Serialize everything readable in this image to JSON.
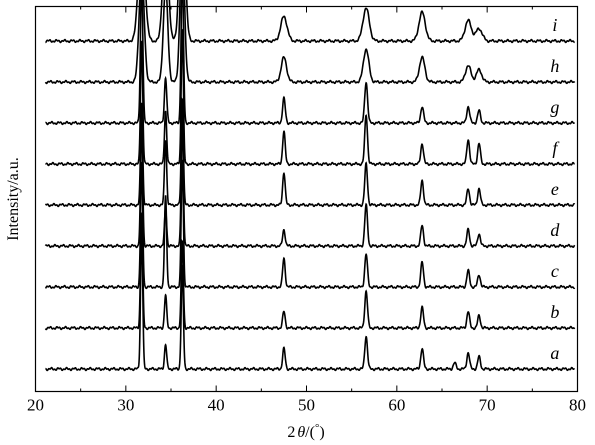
{
  "chart_data": {
    "type": "line",
    "xlabel_parts": {
      "pre": "2",
      "theta": "θ",
      "mid": "/(",
      "deg": "°",
      "post": ")"
    },
    "ylabel": "Intensity/a.u.",
    "xlim": [
      20,
      80
    ],
    "x_ticks": [
      20,
      30,
      40,
      50,
      60,
      70,
      80
    ],
    "x_tick_labels": [
      "20",
      "30",
      "40",
      "50",
      "60",
      "70",
      "80"
    ],
    "y_ticks_visible": false,
    "grid": false,
    "legend": "none",
    "series_label_position_2theta": 77.5,
    "note": "Stacked XRD patterns; each trace offset vertically. Peak heights are relative intensities (trace units).",
    "series": [
      {
        "label": "a",
        "baseline": 0.5,
        "peaks": [
          [
            31.75,
            3.4,
            0.12
          ],
          [
            34.4,
            0.6,
            0.12
          ],
          [
            36.25,
            2.5,
            0.12
          ],
          [
            47.5,
            0.5,
            0.14
          ],
          [
            56.6,
            0.8,
            0.15
          ],
          [
            62.8,
            0.5,
            0.15
          ],
          [
            66.4,
            0.15,
            0.15
          ],
          [
            67.9,
            0.4,
            0.15
          ],
          [
            69.1,
            0.3,
            0.15
          ]
        ]
      },
      {
        "label": "b",
        "baseline": 1.5,
        "peaks": [
          [
            31.75,
            2.8,
            0.12
          ],
          [
            34.4,
            0.8,
            0.12
          ],
          [
            36.25,
            2.1,
            0.12
          ],
          [
            47.5,
            0.4,
            0.14
          ],
          [
            56.6,
            0.9,
            0.15
          ],
          [
            62.8,
            0.5,
            0.15
          ],
          [
            67.9,
            0.4,
            0.15
          ],
          [
            69.1,
            0.3,
            0.15
          ]
        ]
      },
      {
        "label": "c",
        "baseline": 2.5,
        "peaks": [
          [
            31.75,
            3.0,
            0.12
          ],
          [
            34.4,
            2.2,
            0.12
          ],
          [
            36.25,
            3.1,
            0.12
          ],
          [
            47.5,
            0.7,
            0.14
          ],
          [
            56.6,
            0.8,
            0.15
          ],
          [
            62.8,
            0.6,
            0.15
          ],
          [
            67.9,
            0.4,
            0.15
          ],
          [
            69.1,
            0.3,
            0.15
          ]
        ]
      },
      {
        "label": "d",
        "baseline": 3.5,
        "peaks": [
          [
            31.75,
            3.0,
            0.12
          ],
          [
            34.4,
            0.9,
            0.12
          ],
          [
            36.25,
            3.1,
            0.12
          ],
          [
            47.5,
            0.4,
            0.14
          ],
          [
            56.6,
            1.0,
            0.15
          ],
          [
            62.8,
            0.5,
            0.15
          ],
          [
            67.9,
            0.4,
            0.15
          ],
          [
            69.1,
            0.3,
            0.15
          ]
        ]
      },
      {
        "label": "e",
        "baseline": 4.5,
        "peaks": [
          [
            31.75,
            2.5,
            0.12
          ],
          [
            34.4,
            1.6,
            0.12
          ],
          [
            36.25,
            2.6,
            0.12
          ],
          [
            47.5,
            0.8,
            0.14
          ],
          [
            56.6,
            1.0,
            0.15
          ],
          [
            62.8,
            0.6,
            0.15
          ],
          [
            67.9,
            0.4,
            0.15
          ],
          [
            69.1,
            0.4,
            0.15
          ]
        ]
      },
      {
        "label": "f",
        "baseline": 5.5,
        "peaks": [
          [
            31.75,
            3.0,
            0.12
          ],
          [
            34.4,
            1.3,
            0.12
          ],
          [
            36.25,
            3.3,
            0.12
          ],
          [
            47.5,
            0.8,
            0.14
          ],
          [
            56.6,
            1.2,
            0.15
          ],
          [
            62.8,
            0.5,
            0.15
          ],
          [
            67.9,
            0.6,
            0.15
          ],
          [
            69.1,
            0.5,
            0.15
          ]
        ]
      },
      {
        "label": "g",
        "baseline": 6.5,
        "peaks": [
          [
            31.75,
            3.5,
            0.13
          ],
          [
            34.4,
            1.1,
            0.13
          ],
          [
            36.25,
            3.7,
            0.13
          ],
          [
            47.5,
            0.6,
            0.15
          ],
          [
            56.6,
            1.0,
            0.16
          ],
          [
            62.8,
            0.4,
            0.16
          ],
          [
            67.9,
            0.4,
            0.16
          ],
          [
            69.1,
            0.3,
            0.16
          ]
        ]
      },
      {
        "label": "h",
        "baseline": 7.5,
        "peaks": [
          [
            31.75,
            2.7,
            0.28
          ],
          [
            34.4,
            2.3,
            0.25
          ],
          [
            36.25,
            3.3,
            0.25
          ],
          [
            47.5,
            0.6,
            0.3
          ],
          [
            56.6,
            0.8,
            0.3
          ],
          [
            62.8,
            0.6,
            0.3
          ],
          [
            67.9,
            0.4,
            0.3
          ],
          [
            69.1,
            0.3,
            0.3
          ]
        ]
      },
      {
        "label": "i",
        "baseline": 8.5,
        "peaks": [
          [
            31.75,
            2.8,
            0.35
          ],
          [
            34.4,
            2.7,
            0.3
          ],
          [
            36.25,
            3.8,
            0.3
          ],
          [
            47.5,
            0.6,
            0.35
          ],
          [
            56.6,
            0.8,
            0.35
          ],
          [
            62.8,
            0.7,
            0.35
          ],
          [
            67.9,
            0.5,
            0.35
          ],
          [
            69.1,
            0.3,
            0.35
          ]
        ]
      }
    ]
  }
}
